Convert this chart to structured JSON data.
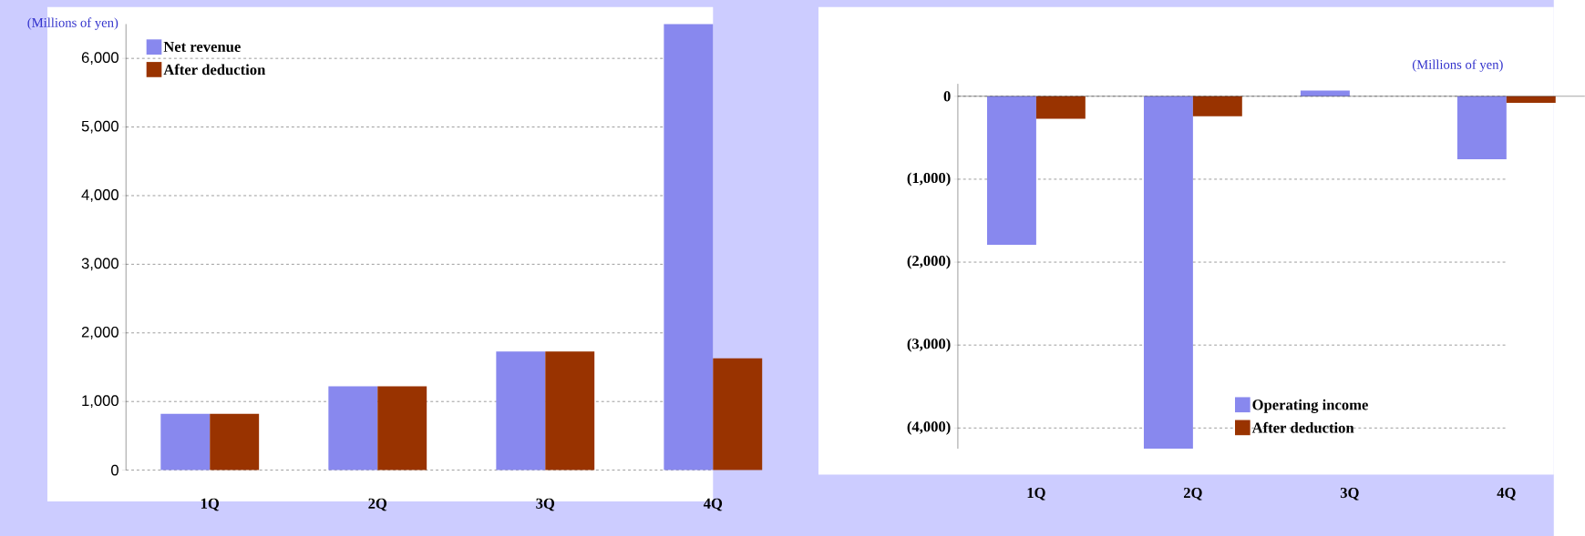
{
  "chart_data": [
    {
      "type": "bar",
      "ylabel": "(Millions of yen)",
      "categories": [
        "1Q",
        "2Q",
        "3Q",
        "4Q"
      ],
      "series": [
        {
          "name": "Net revenue",
          "color": "#8888ee",
          "values": [
            820,
            1220,
            1730,
            6500
          ]
        },
        {
          "name": "After deduction",
          "color": "#993300",
          "values": [
            820,
            1220,
            1730,
            1630
          ]
        }
      ],
      "ylim": [
        0,
        6500
      ],
      "yticks": [
        0,
        {
          "value": 1000,
          "label": "1,000"
        },
        {
          "value": 2000,
          "label": "2,000"
        },
        {
          "value": 3000,
          "label": "3,000"
        },
        {
          "value": 4000,
          "label": "4,000"
        },
        {
          "value": 5000,
          "label": "5,000"
        },
        {
          "value": 6000,
          "label": "6,000"
        }
      ],
      "grid": "y",
      "legend": "top left"
    },
    {
      "type": "bar",
      "ylabel": "(Millions of yen)",
      "categories": [
        "1Q",
        "2Q",
        "3Q",
        "4Q"
      ],
      "series": [
        {
          "name": "Operating income",
          "color": "#8888ee",
          "values": [
            -1790,
            -4250,
            70,
            -760
          ]
        },
        {
          "name": "After deduction",
          "color": "#993300",
          "values": [
            -270,
            -240,
            null,
            -80
          ]
        }
      ],
      "ylim": [
        -4250,
        150
      ],
      "yticks": [
        {
          "value": -4000,
          "label": "(4,000)"
        },
        {
          "value": -3000,
          "label": "(3,000)"
        },
        {
          "value": -2000,
          "label": "(2,000)"
        },
        {
          "value": -1000,
          "label": "(1,000)"
        },
        0
      ],
      "grid": "y",
      "legend": "bottom right"
    }
  ]
}
